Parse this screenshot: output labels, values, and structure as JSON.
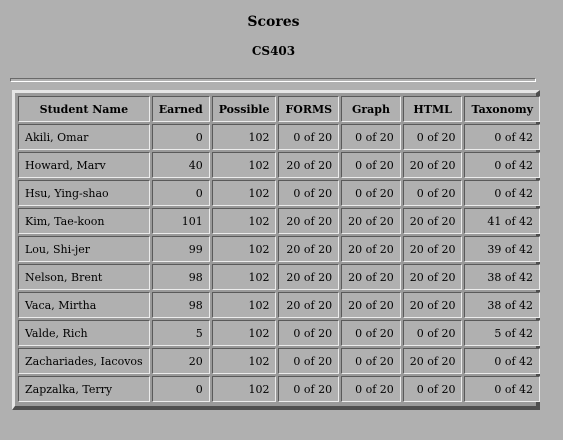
{
  "page": {
    "title": "Scores",
    "course": "CS403"
  },
  "table": {
    "headers": [
      "Student Name",
      "Earned",
      "Possible",
      "FORMS",
      "Graph",
      "HTML",
      "Taxonomy"
    ],
    "rows": [
      [
        "Akili, Omar",
        "0",
        "102",
        "0 of 20",
        "0 of 20",
        "0 of 20",
        "0 of 42"
      ],
      [
        "Howard, Marv",
        "40",
        "102",
        "20 of 20",
        "0 of 20",
        "20 of 20",
        "0 of 42"
      ],
      [
        "Hsu, Ying-shao",
        "0",
        "102",
        "0 of 20",
        "0 of 20",
        "0 of 20",
        "0 of 42"
      ],
      [
        "Kim, Tae-koon",
        "101",
        "102",
        "20 of 20",
        "20 of 20",
        "20 of 20",
        "41 of 42"
      ],
      [
        "Lou, Shi-jer",
        "99",
        "102",
        "20 of 20",
        "20 of 20",
        "20 of 20",
        "39 of 42"
      ],
      [
        "Nelson, Brent",
        "98",
        "102",
        "20 of 20",
        "20 of 20",
        "20 of 20",
        "38 of 42"
      ],
      [
        "Vaca, Mirtha",
        "98",
        "102",
        "20 of 20",
        "20 of 20",
        "20 of 20",
        "38 of 42"
      ],
      [
        "Valde, Rich",
        "5",
        "102",
        "0 of 20",
        "0 of 20",
        "0 of 20",
        "5 of 42"
      ],
      [
        "Zachariades, Iacovos",
        "20",
        "102",
        "0 of 20",
        "0 of 20",
        "20 of 20",
        "0 of 42"
      ],
      [
        "Zapzalka, Terry",
        "0",
        "102",
        "0 of 20",
        "0 of 20",
        "0 of 20",
        "0 of 42"
      ]
    ]
  }
}
